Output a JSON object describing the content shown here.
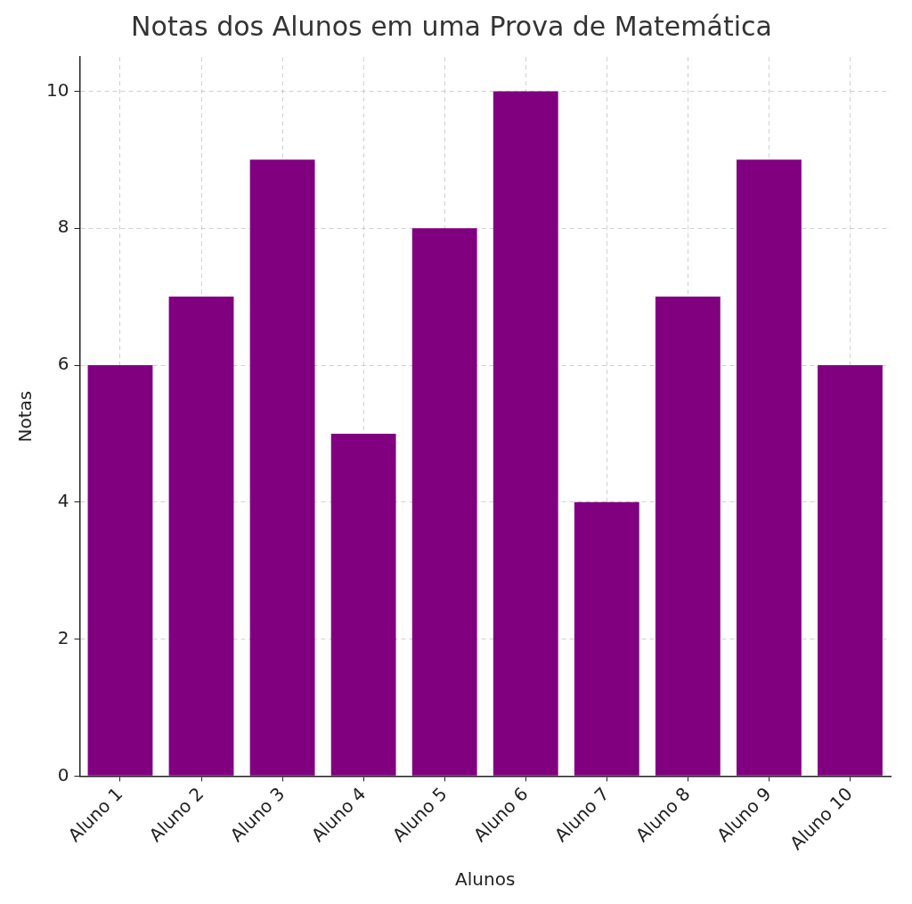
{
  "chart_data": {
    "type": "bar",
    "title": "Notas dos Alunos em uma Prova de Matemática",
    "xlabel": "Alunos",
    "ylabel": "Notas",
    "categories": [
      "Aluno 1",
      "Aluno 2",
      "Aluno 3",
      "Aluno 4",
      "Aluno 5",
      "Aluno 6",
      "Aluno 7",
      "Aluno 8",
      "Aluno 9",
      "Aluno 10"
    ],
    "values": [
      6,
      7,
      9,
      5,
      8,
      10,
      4,
      7,
      9,
      6
    ],
    "color": "#800080",
    "ylim": [
      0,
      10.5
    ],
    "yticks": [
      0,
      2,
      4,
      6,
      8,
      10
    ],
    "grid": true
  }
}
